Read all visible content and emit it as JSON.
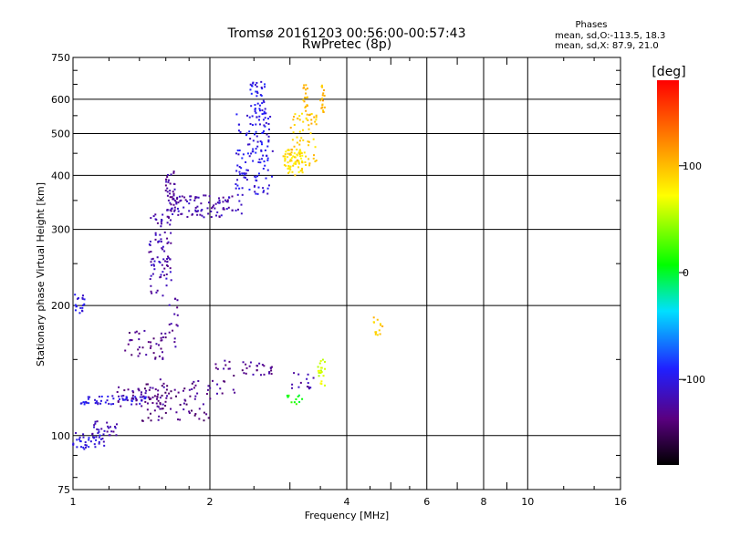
{
  "chart_data": {
    "type": "scatter",
    "title": "Tromsø 20161203 00:56:00-00:57:43",
    "subtitle": "RwPretec (8p)",
    "stats": {
      "heading": "Phases",
      "line1": "mean, sd,O:-113.5, 18.3",
      "line2": "mean, sd,X:  87.9, 21.0"
    },
    "xlabel": "Frequency [MHz]",
    "ylabel": "Stationary phase Virtual Height [km]",
    "xscale": "log",
    "yscale": "log",
    "xlim": [
      1,
      16
    ],
    "ylim": [
      75,
      750
    ],
    "x_ticks": [
      1,
      2,
      4,
      6,
      8,
      10,
      16
    ],
    "x_tick_labels": [
      "1",
      "2",
      "4",
      "6",
      "8",
      "10",
      "16"
    ],
    "x_minor_ticks": [
      3,
      5,
      7,
      9
    ],
    "y_ticks": [
      75,
      100,
      200,
      300,
      400,
      500,
      600,
      750
    ],
    "y_tick_labels": [
      "75",
      "100",
      "200",
      "300",
      "400",
      "500",
      "600",
      "750"
    ],
    "grid": true,
    "colorbar": {
      "label": "[deg]",
      "range": [
        -180,
        180
      ],
      "tick_values": [
        100,
        0,
        -100
      ],
      "tick_labels": [
        "100",
        "0",
        "-100"
      ]
    },
    "series": [
      {
        "clusters": [
          {
            "x0": 1.0,
            "x1": 1.06,
            "y0": 190,
            "y1": 215,
            "phase": -100,
            "n": 18
          },
          {
            "x0": 1.0,
            "x1": 1.18,
            "y0": 93,
            "y1": 102,
            "phase": -105,
            "n": 40
          },
          {
            "x0": 1.07,
            "x1": 1.25,
            "y0": 100,
            "y1": 108,
            "phase": -120,
            "n": 25
          },
          {
            "x0": 1.04,
            "x1": 1.45,
            "y0": 118,
            "y1": 124,
            "phase": -100,
            "n": 55
          },
          {
            "x0": 1.25,
            "x1": 1.62,
            "y0": 115,
            "y1": 130,
            "phase": -130,
            "n": 45
          },
          {
            "x0": 1.3,
            "x1": 1.6,
            "y0": 150,
            "y1": 175,
            "phase": -135,
            "n": 40
          },
          {
            "x0": 1.42,
            "x1": 2.05,
            "y0": 108,
            "y1": 135,
            "phase": -135,
            "n": 85
          },
          {
            "x0": 1.47,
            "x1": 1.65,
            "y0": 210,
            "y1": 330,
            "phase": -120,
            "n": 85
          },
          {
            "x0": 1.6,
            "x1": 1.68,
            "y0": 330,
            "y1": 410,
            "phase": -125,
            "n": 40
          },
          {
            "x0": 1.62,
            "x1": 2.35,
            "y0": 320,
            "y1": 360,
            "phase": -120,
            "n": 95
          },
          {
            "x0": 1.62,
            "x1": 1.7,
            "y0": 160,
            "y1": 210,
            "phase": -125,
            "n": 16
          },
          {
            "x0": 2.05,
            "x1": 2.3,
            "y0": 125,
            "y1": 150,
            "phase": -130,
            "n": 18
          },
          {
            "x0": 2.35,
            "x1": 2.75,
            "y0": 138,
            "y1": 148,
            "phase": -130,
            "n": 26
          },
          {
            "x0": 2.28,
            "x1": 2.75,
            "y0": 360,
            "y1": 560,
            "phase": -100,
            "n": 130
          },
          {
            "x0": 2.45,
            "x1": 2.65,
            "y0": 560,
            "y1": 660,
            "phase": -98,
            "n": 36
          },
          {
            "x0": 3.0,
            "x1": 3.4,
            "y0": 128,
            "y1": 140,
            "phase": -125,
            "n": 14
          },
          {
            "x0": 2.95,
            "x1": 3.2,
            "y0": 118,
            "y1": 124,
            "phase": 10,
            "n": 12
          },
          {
            "x0": 2.9,
            "x1": 3.2,
            "y0": 400,
            "y1": 460,
            "phase": 85,
            "n": 75
          },
          {
            "x0": 3.0,
            "x1": 3.45,
            "y0": 420,
            "y1": 560,
            "phase": 95,
            "n": 60
          },
          {
            "x0": 3.2,
            "x1": 3.28,
            "y0": 560,
            "y1": 650,
            "phase": 100,
            "n": 18
          },
          {
            "x0": 3.5,
            "x1": 3.58,
            "y0": 560,
            "y1": 650,
            "phase": 105,
            "n": 18
          },
          {
            "x0": 3.45,
            "x1": 3.6,
            "y0": 130,
            "y1": 150,
            "phase": 60,
            "n": 20
          },
          {
            "x0": 4.55,
            "x1": 4.8,
            "y0": 170,
            "y1": 190,
            "phase": 95,
            "n": 14
          }
        ]
      }
    ]
  }
}
